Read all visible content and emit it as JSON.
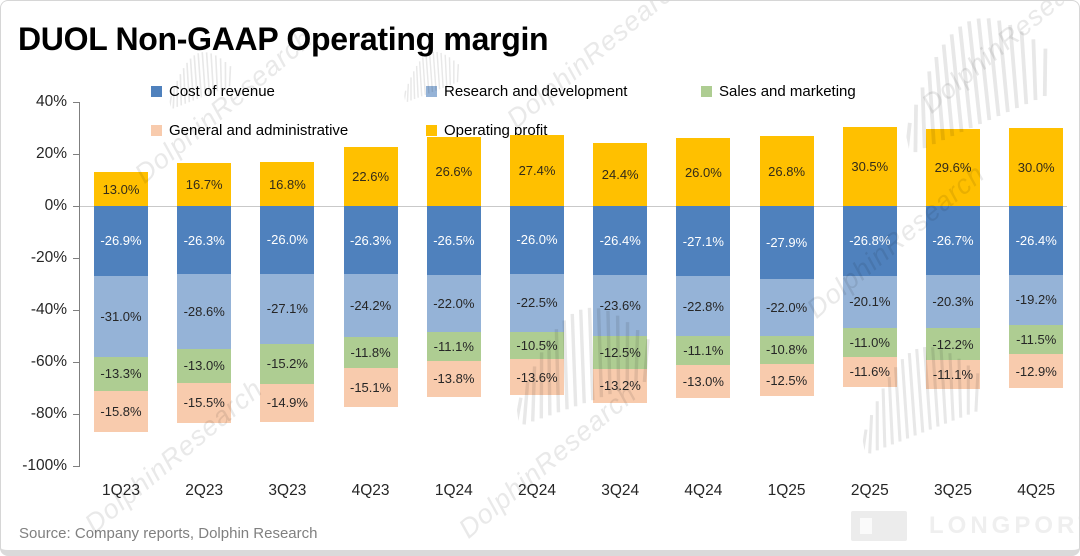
{
  "title": "DUOL Non-GAAP Operating margin",
  "source": "Source:  Company reports, Dolphin Research",
  "watermark": {
    "brand": "DolphinResearch",
    "logo_text": "LONGPORT"
  },
  "chart_data": {
    "type": "bar",
    "stacked": true,
    "title": "DUOL Non-GAAP Operating margin",
    "categories": [
      "1Q23",
      "2Q23",
      "3Q23",
      "4Q23",
      "1Q24",
      "2Q24",
      "3Q24",
      "4Q24",
      "1Q25",
      "2Q25",
      "3Q25",
      "4Q25"
    ],
    "series": [
      {
        "name": "Cost of revenue",
        "color": "#4F81BD",
        "label_color": "#FFFFFF",
        "values": [
          -26.9,
          -26.3,
          -26.0,
          -26.3,
          -26.5,
          -26.0,
          -26.4,
          -27.1,
          -27.9,
          -26.8,
          -26.7,
          -26.4
        ]
      },
      {
        "name": "Research and development",
        "color": "#95B3D7",
        "label_color": "#262626",
        "values": [
          -31.0,
          -28.6,
          -27.1,
          -24.2,
          -22.0,
          -22.5,
          -23.6,
          -22.8,
          -22.0,
          -20.1,
          -20.3,
          -19.2
        ]
      },
      {
        "name": "Sales and marketing",
        "color": "#AECD92",
        "label_color": "#262626",
        "values": [
          -13.3,
          -13.0,
          -15.2,
          -11.8,
          -11.1,
          -10.5,
          -12.5,
          -11.1,
          -10.8,
          -11.0,
          -12.2,
          -11.5
        ]
      },
      {
        "name": "General and administrative",
        "color": "#F8CBAD",
        "label_color": "#262626",
        "values": [
          -15.8,
          -15.5,
          -14.9,
          -15.1,
          -13.8,
          -13.6,
          -13.2,
          -13.0,
          -12.5,
          -11.6,
          -11.1,
          -12.9
        ]
      },
      {
        "name": "Operating profit",
        "color": "#FFC000",
        "label_color": "#332B1A",
        "values": [
          13.0,
          16.7,
          16.8,
          22.6,
          26.6,
          27.4,
          24.4,
          26.0,
          26.8,
          30.5,
          29.6,
          30.0
        ]
      }
    ],
    "y_ticks": [
      "40%",
      "20%",
      "0%",
      "-20%",
      "-40%",
      "-60%",
      "-80%",
      "-100%"
    ],
    "ylim": [
      -100,
      40
    ],
    "grid": "zero-line-only",
    "legend_position": "top-two-rows"
  }
}
